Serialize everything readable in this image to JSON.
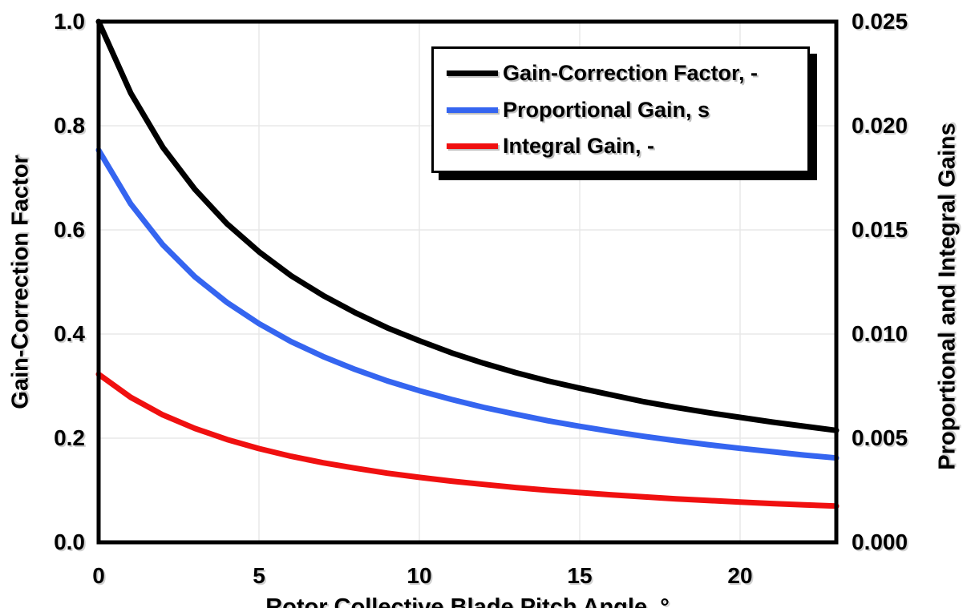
{
  "colors": {
    "background": "#FFFFFF",
    "axis": "#000000",
    "grid": "#E8E8E8",
    "series_black": "#000000",
    "series_blue": "#3565F0",
    "series_red": "#F01010"
  },
  "chart_data": {
    "type": "line",
    "title": "",
    "grid": true,
    "x_axis": {
      "title": "Rotor Collective Blade Pitch Angle, °",
      "min": 0,
      "max": 23,
      "ticks": [
        {
          "value": 0,
          "label": "0"
        },
        {
          "value": 5,
          "label": "5"
        },
        {
          "value": 10,
          "label": "10"
        },
        {
          "value": 15,
          "label": "15"
        },
        {
          "value": 20,
          "label": "20"
        }
      ],
      "gridlines": [
        5,
        10,
        15,
        20
      ]
    },
    "left_axis": {
      "title": "Gain-Correction Factor",
      "min": 0,
      "max": 1.0,
      "ticks": [
        {
          "value": 1.0,
          "label": "1.0"
        },
        {
          "value": 0.8,
          "label": "0.8"
        },
        {
          "value": 0.6,
          "label": "0.6"
        },
        {
          "value": 0.4,
          "label": "0.4"
        },
        {
          "value": 0.2,
          "label": "0.2"
        },
        {
          "value": 0.0,
          "label": "0.0"
        }
      ],
      "gridlines": [
        0.2,
        0.4,
        0.6,
        0.8
      ]
    },
    "right_axis": {
      "title": "Proportional and Integral Gains",
      "min": 0,
      "max": 0.025,
      "ticks": [
        {
          "value": 0.025,
          "label": "0.025"
        },
        {
          "value": 0.02,
          "label": "0.020"
        },
        {
          "value": 0.015,
          "label": "0.015"
        },
        {
          "value": 0.01,
          "label": "0.010"
        },
        {
          "value": 0.005,
          "label": "0.005"
        },
        {
          "value": 0.0,
          "label": "0.000"
        }
      ]
    },
    "legend": {
      "position": "top-right",
      "items": [
        {
          "label": "Gain-Correction Factor, -",
          "color": "#000000"
        },
        {
          "label": "Proportional Gain, s",
          "color": "#3565F0"
        },
        {
          "label": "Integral Gain, -",
          "color": "#F01010"
        }
      ]
    },
    "series": [
      {
        "name": "Gain-Correction Factor, -",
        "axis": "left",
        "color": "#000000",
        "x": [
          0,
          1,
          2,
          3,
          4,
          5,
          6,
          7,
          8,
          9,
          10,
          11,
          12,
          13,
          14,
          15,
          16,
          17,
          18,
          19,
          20,
          21,
          22,
          23
        ],
        "y": [
          1.0,
          0.863,
          0.759,
          0.678,
          0.612,
          0.558,
          0.512,
          0.474,
          0.441,
          0.412,
          0.387,
          0.364,
          0.344,
          0.326,
          0.31,
          0.296,
          0.283,
          0.27,
          0.259,
          0.249,
          0.24,
          0.231,
          0.223,
          0.215
        ]
      },
      {
        "name": "Proportional Gain, s",
        "axis": "right",
        "color": "#3565F0",
        "x": [
          0,
          1,
          2,
          3,
          4,
          5,
          6,
          7,
          8,
          9,
          10,
          11,
          12,
          13,
          14,
          15,
          16,
          17,
          18,
          19,
          20,
          21,
          22,
          23
        ],
        "y": [
          0.01883,
          0.01625,
          0.01429,
          0.01275,
          0.01152,
          0.0105,
          0.00964,
          0.00892,
          0.0083,
          0.00775,
          0.00728,
          0.00686,
          0.00648,
          0.00615,
          0.00584,
          0.00557,
          0.00532,
          0.00509,
          0.00488,
          0.00469,
          0.00451,
          0.00435,
          0.00419,
          0.00405
        ]
      },
      {
        "name": "Integral Gain, -",
        "axis": "right",
        "color": "#F01010",
        "x": [
          0,
          1,
          2,
          3,
          4,
          5,
          6,
          7,
          8,
          9,
          10,
          11,
          12,
          13,
          14,
          15,
          16,
          17,
          18,
          19,
          20,
          21,
          22,
          23
        ],
        "y": [
          0.00807,
          0.00696,
          0.00612,
          0.00547,
          0.00494,
          0.0045,
          0.00413,
          0.00382,
          0.00356,
          0.00332,
          0.00312,
          0.00294,
          0.00278,
          0.00263,
          0.0025,
          0.00239,
          0.00228,
          0.00218,
          0.00209,
          0.00201,
          0.00193,
          0.00186,
          0.0018,
          0.00174
        ]
      }
    ]
  }
}
